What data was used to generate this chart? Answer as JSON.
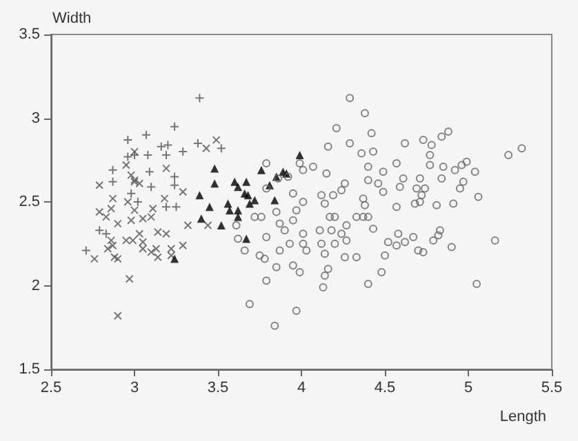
{
  "chart_data": {
    "type": "scatter",
    "xlabel": "Length",
    "ylabel": "Width",
    "xlim": [
      2.5,
      5.5
    ],
    "xticks": [
      2.5,
      3,
      3.5,
      4,
      4.5,
      5,
      5.5
    ],
    "ylim": [
      1.5,
      3.5
    ],
    "yticks": [
      1.5,
      2,
      2.5,
      3,
      3.5
    ],
    "grid": false,
    "series": [
      {
        "color": "#555555",
        "marker": "cross",
        "x": [
          3.49,
          3.43,
          3.0,
          2.95,
          3.19,
          2.79,
          3.0,
          3.03,
          3.29,
          2.87,
          3.18,
          2.96,
          2.86,
          3.11,
          2.79,
          2.83,
          2.98,
          3.05,
          3.1,
          2.9,
          3.32,
          3.44,
          3.03,
          3.14,
          3.19,
          2.95,
          2.99,
          3.05,
          2.86,
          2.87,
          2.84,
          3.05,
          3.13,
          3.22,
          3.29,
          2.88,
          2.9,
          2.76,
          3.1,
          3.14,
          3.22,
          2.97,
          2.9,
          2.98,
          3.0,
          3.0
        ],
        "values": [
          2.87,
          2.82,
          2.8,
          2.72,
          2.7,
          2.6,
          2.62,
          2.61,
          2.56,
          2.52,
          2.52,
          2.5,
          2.46,
          2.46,
          2.44,
          2.41,
          2.39,
          2.4,
          2.41,
          2.37,
          2.36,
          2.36,
          2.31,
          2.32,
          2.31,
          2.27,
          2.27,
          2.26,
          2.27,
          2.24,
          2.22,
          2.22,
          2.22,
          2.22,
          2.24,
          2.17,
          2.16,
          2.16,
          2.2,
          2.17,
          2.18,
          2.04,
          1.82,
          2.66,
          2.45,
          2.63
        ]
      },
      {
        "color": "#555555",
        "marker": "plus",
        "x": [
          3.39,
          3.24,
          2.96,
          3.16,
          3.08,
          2.96,
          3.0,
          3.19,
          3.29,
          3.38,
          3.1,
          3.19,
          2.83,
          3.09,
          2.98,
          3.02,
          3.07,
          2.87,
          2.71,
          3.25,
          3.24,
          2.87,
          3.52,
          2.79,
          3.24,
          3.2
        ],
        "values": [
          3.12,
          2.95,
          2.87,
          2.83,
          2.78,
          2.77,
          2.78,
          2.78,
          2.8,
          2.85,
          2.59,
          2.47,
          2.31,
          2.68,
          2.55,
          2.5,
          2.9,
          2.62,
          2.21,
          2.47,
          2.6,
          2.69,
          2.82,
          2.33,
          2.65,
          2.84
        ]
      },
      {
        "color": "#000000",
        "marker": "triangle",
        "x": [
          3.48,
          3.48,
          3.39,
          3.45,
          3.56,
          3.57,
          3.6,
          3.67,
          3.62,
          3.66,
          3.62,
          3.62,
          3.4,
          3.52,
          3.24,
          3.99,
          3.76,
          3.89,
          3.85,
          3.91,
          3.81,
          3.68,
          3.72,
          3.84,
          3.67,
          3.69
        ],
        "values": [
          2.7,
          2.61,
          2.54,
          2.47,
          2.49,
          2.45,
          2.62,
          2.62,
          2.59,
          2.55,
          2.45,
          2.41,
          2.4,
          2.36,
          2.16,
          2.78,
          2.69,
          2.68,
          2.65,
          2.67,
          2.6,
          2.54,
          2.51,
          2.51,
          2.28,
          2.49
        ]
      },
      {
        "color": "#666666",
        "marker": "circle",
        "x": [
          4.29,
          4.38,
          4.21,
          4.16,
          4.29,
          4.36,
          4.07,
          3.99,
          4.15,
          3.79,
          3.86,
          3.92,
          4.26,
          3.79,
          3.95,
          4.01,
          4.12,
          4.19,
          4.24,
          4.14,
          4.2,
          3.97,
          3.72,
          3.76,
          3.85,
          3.95,
          3.87,
          3.61,
          3.62,
          3.66,
          3.79,
          3.9,
          4.01,
          4.11,
          4.18,
          4.24,
          3.93,
          4.01,
          4.03,
          3.87,
          3.75,
          3.78,
          4.12,
          4.14,
          4.27,
          4.26,
          4.33,
          3.85,
          3.79,
          3.95,
          3.99,
          4.14,
          4.13,
          3.69,
          3.97,
          3.84,
          4.4,
          4.37,
          4.01,
          4.42,
          4.43,
          4.62,
          4.73,
          4.78,
          4.84,
          4.88,
          4.77,
          4.4,
          4.57,
          4.77,
          4.85,
          4.92,
          4.99,
          4.96,
          5.24,
          5.32,
          4.49,
          4.4,
          4.61,
          4.71,
          4.84,
          5.04,
          4.97,
          4.46,
          4.59,
          4.49,
          4.69,
          4.74,
          4.95,
          4.72,
          5.06,
          4.37,
          4.71,
          4.68,
          4.57,
          4.81,
          4.91,
          4.38,
          4.33,
          4.4,
          4.17,
          4.43,
          4.27,
          4.58,
          4.67,
          4.83,
          4.82,
          4.79,
          4.9,
          4.62,
          4.57,
          4.52,
          5.16,
          4.2,
          4.7,
          4.73,
          4.5,
          4.48,
          5.05,
          4.16
        ],
        "values": [
          3.12,
          3.03,
          2.94,
          2.83,
          2.85,
          2.79,
          2.71,
          2.73,
          2.67,
          2.73,
          2.64,
          2.65,
          2.61,
          2.58,
          2.55,
          2.5,
          2.54,
          2.54,
          2.57,
          2.49,
          2.41,
          2.45,
          2.41,
          2.41,
          2.44,
          2.39,
          2.37,
          2.36,
          2.28,
          2.21,
          2.29,
          2.33,
          2.31,
          2.33,
          2.33,
          2.31,
          2.25,
          2.25,
          2.21,
          2.21,
          2.18,
          2.16,
          2.25,
          2.19,
          2.27,
          2.17,
          2.17,
          2.11,
          2.03,
          2.12,
          2.08,
          2.06,
          1.99,
          1.89,
          1.85,
          1.76,
          2.01,
          2.41,
          2.69,
          2.91,
          2.8,
          2.85,
          2.87,
          2.84,
          2.89,
          2.92,
          2.78,
          2.71,
          2.73,
          2.72,
          2.71,
          2.69,
          2.74,
          2.72,
          2.78,
          2.82,
          2.68,
          2.63,
          2.64,
          2.64,
          2.64,
          2.68,
          2.62,
          2.61,
          2.59,
          2.56,
          2.58,
          2.58,
          2.58,
          2.54,
          2.53,
          2.52,
          2.5,
          2.49,
          2.47,
          2.48,
          2.49,
          2.48,
          2.41,
          2.41,
          2.41,
          2.34,
          2.36,
          2.31,
          2.29,
          2.33,
          2.3,
          2.27,
          2.23,
          2.26,
          2.24,
          2.26,
          2.27,
          2.25,
          2.21,
          2.2,
          2.18,
          2.08,
          2.01,
          2.1
        ]
      }
    ]
  }
}
